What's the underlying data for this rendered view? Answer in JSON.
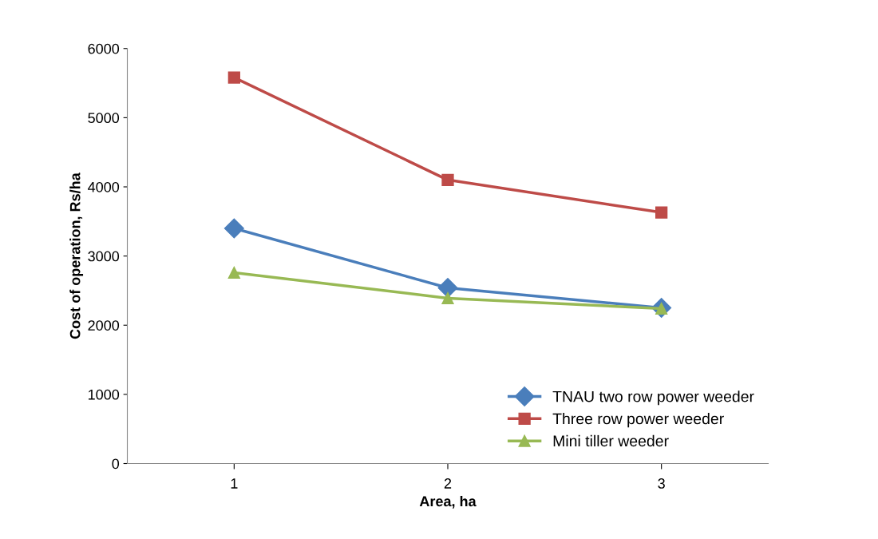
{
  "chart_data": {
    "type": "line",
    "xlabel": "Area, ha",
    "ylabel": "Cost of operation, Rs/ha",
    "x": [
      1,
      2,
      3
    ],
    "xlim": [
      0.5,
      3.5
    ],
    "xticks": [
      1,
      2,
      3
    ],
    "series": [
      {
        "name": "TNAU two row power weeder",
        "color": "#4a7ebb",
        "marker": "diamond",
        "values": [
          3400,
          2540,
          2250
        ]
      },
      {
        "name": "Three row power weeder",
        "color": "#be4b48",
        "marker": "square",
        "values": [
          5580,
          4100,
          3630
        ]
      },
      {
        "name": "Mini tiller weeder",
        "color": "#98b954",
        "marker": "triangle",
        "values": [
          2760,
          2390,
          2240
        ]
      }
    ],
    "ylim": [
      0,
      6000
    ],
    "yticks": [
      0,
      1000,
      2000,
      3000,
      4000,
      5000,
      6000
    ],
    "grid": false,
    "legend": "lower right",
    "line_style": "solid"
  }
}
